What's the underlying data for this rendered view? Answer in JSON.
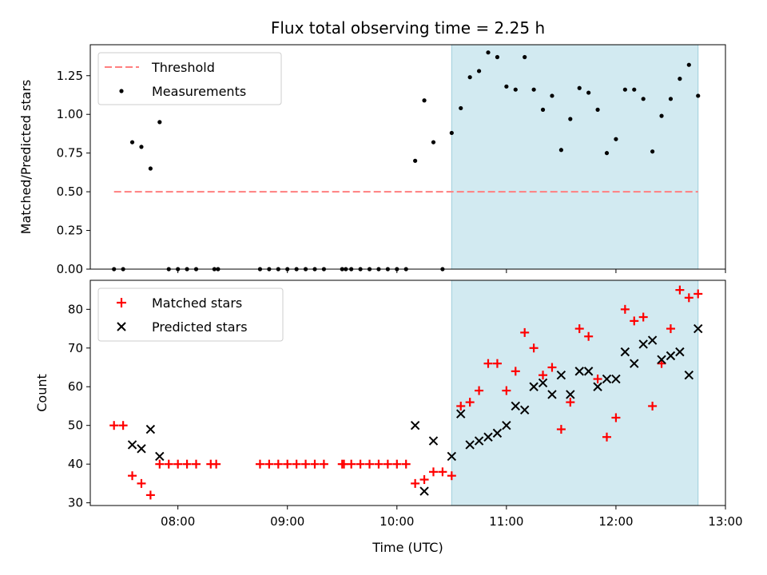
{
  "chart_data": [
    {
      "type": "scatter",
      "title": "Flux total observing time = 2.25 h",
      "xlabel": "",
      "ylabel": "Matched/Predicted stars",
      "ylim": [
        0,
        1.45
      ],
      "yticks": [
        "0.00",
        "0.25",
        "0.50",
        "0.75",
        "1.00",
        "1.25"
      ],
      "xlim": [
        "07:12",
        "13:00"
      ],
      "shaded_interval": [
        "10:30",
        "12:45"
      ],
      "shade_color": "#add8e6",
      "legend_position": "upper-left",
      "threshold": {
        "name": "Threshold",
        "value": 0.5,
        "x_range": [
          "07:25",
          "12:45"
        ],
        "color": "#ff7f7f"
      },
      "series": [
        {
          "name": "Measurements",
          "color": "#000000",
          "points": [
            [
              "07:25",
              0
            ],
            [
              "07:30",
              0
            ],
            [
              "07:35",
              0.82
            ],
            [
              "07:40",
              0.79
            ],
            [
              "07:45",
              0.65
            ],
            [
              "07:50",
              0.95
            ],
            [
              "07:55",
              0
            ],
            [
              "08:00",
              0
            ],
            [
              "08:05",
              0
            ],
            [
              "08:10",
              0
            ],
            [
              "08:20",
              0
            ],
            [
              "08:22",
              0
            ],
            [
              "08:45",
              0
            ],
            [
              "08:50",
              0
            ],
            [
              "08:55",
              0
            ],
            [
              "09:00",
              0
            ],
            [
              "09:05",
              0
            ],
            [
              "09:10",
              0
            ],
            [
              "09:15",
              0
            ],
            [
              "09:20",
              0
            ],
            [
              "09:30",
              0
            ],
            [
              "09:32",
              0
            ],
            [
              "09:35",
              0
            ],
            [
              "09:40",
              0
            ],
            [
              "09:45",
              0
            ],
            [
              "09:50",
              0
            ],
            [
              "09:55",
              0
            ],
            [
              "10:00",
              0
            ],
            [
              "10:05",
              0
            ],
            [
              "10:10",
              0.7
            ],
            [
              "10:15",
              1.09
            ],
            [
              "10:20",
              0.82
            ],
            [
              "10:25",
              0
            ],
            [
              "10:30",
              0.88
            ],
            [
              "10:35",
              1.04
            ],
            [
              "10:40",
              1.24
            ],
            [
              "10:45",
              1.28
            ],
            [
              "10:50",
              1.4
            ],
            [
              "10:55",
              1.37
            ],
            [
              "11:00",
              1.18
            ],
            [
              "11:05",
              1.16
            ],
            [
              "11:10",
              1.37
            ],
            [
              "11:15",
              1.16
            ],
            [
              "11:20",
              1.03
            ],
            [
              "11:25",
              1.12
            ],
            [
              "11:30",
              0.77
            ],
            [
              "11:35",
              0.97
            ],
            [
              "11:40",
              1.17
            ],
            [
              "11:45",
              1.14
            ],
            [
              "11:50",
              1.03
            ],
            [
              "11:55",
              0.75
            ],
            [
              "12:00",
              0.84
            ],
            [
              "12:05",
              1.16
            ],
            [
              "12:10",
              1.16
            ],
            [
              "12:15",
              1.1
            ],
            [
              "12:20",
              0.76
            ],
            [
              "12:25",
              0.99
            ],
            [
              "12:30",
              1.1
            ],
            [
              "12:35",
              1.23
            ],
            [
              "12:40",
              1.32
            ],
            [
              "12:45",
              1.12
            ]
          ]
        }
      ]
    },
    {
      "type": "scatter",
      "title": "",
      "xlabel": "Time (UTC)",
      "ylabel": "Count",
      "ylim": [
        29.3,
        87.5
      ],
      "yticks": [
        "30",
        "40",
        "50",
        "60",
        "70",
        "80"
      ],
      "xlim": [
        "07:12",
        "13:00"
      ],
      "xticks": [
        "08:00",
        "09:00",
        "10:00",
        "11:00",
        "12:00",
        "13:00"
      ],
      "shaded_interval": [
        "10:30",
        "12:45"
      ],
      "shade_color": "#add8e6",
      "legend_position": "upper-left",
      "series": [
        {
          "name": "Matched stars",
          "marker": "+",
          "color": "#ff0000",
          "points": [
            [
              "07:25",
              50
            ],
            [
              "07:30",
              50
            ],
            [
              "07:35",
              37
            ],
            [
              "07:40",
              35
            ],
            [
              "07:45",
              32
            ],
            [
              "07:50",
              40
            ],
            [
              "07:55",
              40
            ],
            [
              "08:00",
              40
            ],
            [
              "08:05",
              40
            ],
            [
              "08:10",
              40
            ],
            [
              "08:18",
              40
            ],
            [
              "08:21",
              40
            ],
            [
              "08:45",
              40
            ],
            [
              "08:50",
              40
            ],
            [
              "08:55",
              40
            ],
            [
              "09:00",
              40
            ],
            [
              "09:05",
              40
            ],
            [
              "09:10",
              40
            ],
            [
              "09:15",
              40
            ],
            [
              "09:20",
              40
            ],
            [
              "09:30",
              40
            ],
            [
              "09:31",
              40
            ],
            [
              "09:35",
              40
            ],
            [
              "09:40",
              40
            ],
            [
              "09:45",
              40
            ],
            [
              "09:50",
              40
            ],
            [
              "09:55",
              40
            ],
            [
              "10:00",
              40
            ],
            [
              "10:05",
              40
            ],
            [
              "10:10",
              35
            ],
            [
              "10:15",
              36
            ],
            [
              "10:20",
              38
            ],
            [
              "10:25",
              38
            ],
            [
              "10:30",
              37
            ],
            [
              "10:35",
              55
            ],
            [
              "10:40",
              56
            ],
            [
              "10:45",
              59
            ],
            [
              "10:50",
              66
            ],
            [
              "10:55",
              66
            ],
            [
              "11:00",
              59
            ],
            [
              "11:05",
              64
            ],
            [
              "11:10",
              74
            ],
            [
              "11:15",
              70
            ],
            [
              "11:20",
              63
            ],
            [
              "11:25",
              65
            ],
            [
              "11:30",
              49
            ],
            [
              "11:35",
              56
            ],
            [
              "11:40",
              75
            ],
            [
              "11:45",
              73
            ],
            [
              "11:50",
              62
            ],
            [
              "11:55",
              47
            ],
            [
              "12:00",
              52
            ],
            [
              "12:05",
              80
            ],
            [
              "12:10",
              77
            ],
            [
              "12:15",
              78
            ],
            [
              "12:20",
              55
            ],
            [
              "12:25",
              66
            ],
            [
              "12:30",
              75
            ],
            [
              "12:35",
              85
            ],
            [
              "12:40",
              83
            ],
            [
              "12:45",
              84
            ]
          ]
        },
        {
          "name": "Predicted stars",
          "marker": "x",
          "color": "#000000",
          "points": [
            [
              "07:35",
              45
            ],
            [
              "07:40",
              44
            ],
            [
              "07:45",
              49
            ],
            [
              "07:50",
              42
            ],
            [
              "10:10",
              50
            ],
            [
              "10:15",
              33
            ],
            [
              "10:20",
              46
            ],
            [
              "10:30",
              42
            ],
            [
              "10:35",
              53
            ],
            [
              "10:40",
              45
            ],
            [
              "10:45",
              46
            ],
            [
              "10:50",
              47
            ],
            [
              "10:55",
              48
            ],
            [
              "11:00",
              50
            ],
            [
              "11:05",
              55
            ],
            [
              "11:10",
              54
            ],
            [
              "11:15",
              60
            ],
            [
              "11:20",
              61
            ],
            [
              "11:25",
              58
            ],
            [
              "11:30",
              63
            ],
            [
              "11:35",
              58
            ],
            [
              "11:40",
              64
            ],
            [
              "11:45",
              64
            ],
            [
              "11:50",
              60
            ],
            [
              "11:55",
              62
            ],
            [
              "12:00",
              62
            ],
            [
              "12:05",
              69
            ],
            [
              "12:10",
              66
            ],
            [
              "12:15",
              71
            ],
            [
              "12:20",
              72
            ],
            [
              "12:25",
              67
            ],
            [
              "12:30",
              68
            ],
            [
              "12:35",
              69
            ],
            [
              "12:40",
              63
            ],
            [
              "12:45",
              75
            ]
          ]
        }
      ]
    }
  ]
}
